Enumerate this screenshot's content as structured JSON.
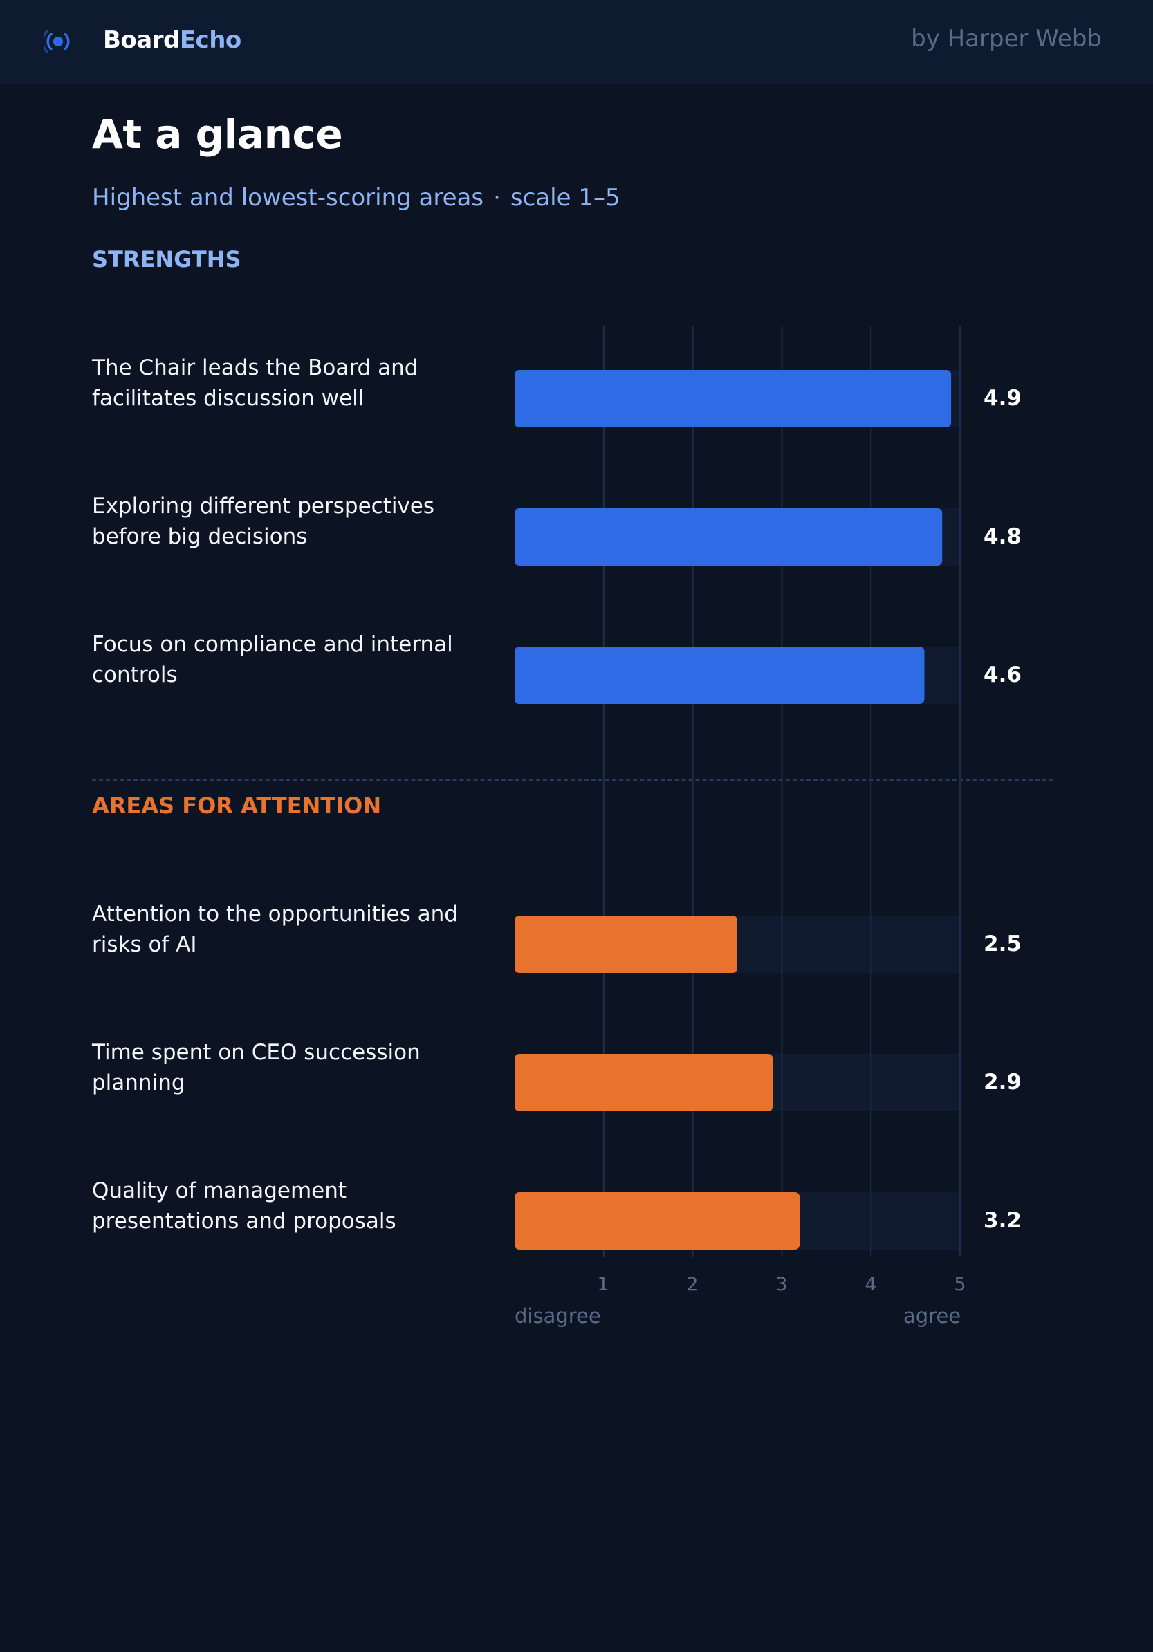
{
  "header": {
    "brand_part1": "Board",
    "brand_part2": "Echo",
    "byline": "by Harper Webb",
    "logo_icon": "broadcast-icon"
  },
  "page": {
    "title": "At a glance",
    "subtitle": "Highest and lowest-scoring areas",
    "subtitle_separator": "·",
    "subtitle_scale": "scale 1–5"
  },
  "colors": {
    "background": "#0c1424",
    "header_bg": "#0e1a30",
    "strength": "#2f6be4",
    "attention": "#e8732e",
    "track": "#111b30",
    "grid": "#1f2c48"
  },
  "chart_data": {
    "type": "bar",
    "orientation": "horizontal",
    "xlim": [
      0,
      5
    ],
    "xticks": [
      "1",
      "2",
      "3",
      "4",
      "5"
    ],
    "x_low_label": "disagree",
    "x_high_label": "agree",
    "grid": true,
    "groups": [
      {
        "name": "STRENGTHS",
        "color": "#2f6be4",
        "items": [
          {
            "label": "The Chair leads the Board and facilitates discussion well",
            "value": 4.9,
            "display": "4.9"
          },
          {
            "label": "Exploring different perspectives before big decisions",
            "value": 4.8,
            "display": "4.8"
          },
          {
            "label": "Focus on compliance and internal controls",
            "value": 4.6,
            "display": "4.6"
          }
        ]
      },
      {
        "name": "AREAS FOR ATTENTION",
        "color": "#e8732e",
        "items": [
          {
            "label": "Attention to the opportunities and risks of AI",
            "value": 2.5,
            "display": "2.5"
          },
          {
            "label": "Time spent on CEO succession planning",
            "value": 2.9,
            "display": "2.9"
          },
          {
            "label": "Quality of management presentations and proposals",
            "value": 3.2,
            "display": "3.2"
          }
        ]
      }
    ]
  }
}
